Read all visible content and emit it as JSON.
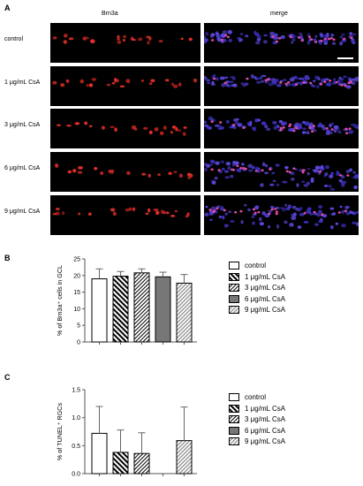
{
  "panelA": {
    "letter": "A",
    "col_headers": [
      "Brn3a",
      "merge"
    ],
    "rows": [
      "control",
      "1 μg/mL CsA",
      "3 μg/mL CsA",
      "6 μg/mL CsA",
      "9 μg/mL CsA"
    ]
  },
  "panelB": {
    "letter": "B"
  },
  "panelC": {
    "letter": "C"
  },
  "legend": {
    "items": [
      {
        "label": "control",
        "fill": "white"
      },
      {
        "label": "1 μg/mL CsA",
        "fill": "diag-dense"
      },
      {
        "label": "3 μg/mL CsA",
        "fill": "diag-light"
      },
      {
        "label": "6 μg/mL CsA",
        "fill": "#777777"
      },
      {
        "label": "9 μg/mL CsA",
        "fill": "diag-grey"
      }
    ]
  },
  "chart_data": [
    {
      "type": "bar",
      "ylabel": "% of Brn3a⁺ cells in GCL",
      "ylim": [
        0,
        25
      ],
      "yticks": [
        "0",
        "5",
        "10",
        "15",
        "20",
        "25"
      ],
      "categories": [
        "control",
        "1 μg/mL CsA",
        "3 μg/mL CsA",
        "6 μg/mL CsA",
        "9 μg/mL CsA"
      ],
      "values": [
        19.0,
        19.8,
        20.8,
        19.6,
        17.7
      ],
      "errors": [
        3.0,
        1.4,
        1.2,
        1.4,
        2.6
      ]
    },
    {
      "type": "bar",
      "ylabel": "% of TUNEL⁺ RGCs",
      "ylim": [
        0,
        1.5
      ],
      "yticks": [
        "0.0",
        "0.5",
        "1.0",
        "1.5"
      ],
      "categories": [
        "control",
        "1 μg/mL CsA",
        "3 μg/mL CsA",
        "6 μg/mL CsA",
        "9 μg/mL CsA"
      ],
      "values": [
        0.72,
        0.38,
        0.36,
        0.0,
        0.59
      ],
      "errors": [
        0.48,
        0.4,
        0.37,
        0.0,
        0.6
      ]
    }
  ]
}
